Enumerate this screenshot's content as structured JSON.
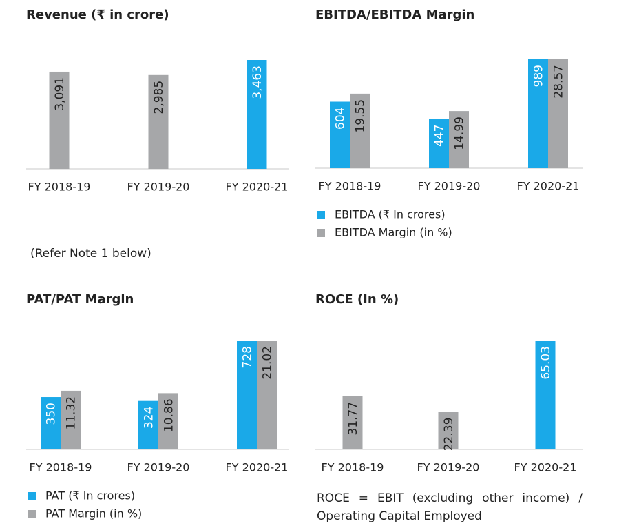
{
  "chart_data": [
    {
      "type": "bar",
      "title": "Revenue (₹ in crore)",
      "categories": [
        "FY 2018-19",
        "FY 2019-20",
        "FY 2020-21"
      ],
      "values": [
        3091,
        2985,
        3463
      ],
      "value_labels": [
        "3,091",
        "2,985",
        "3,463"
      ],
      "colors": [
        "#a6a7a9",
        "#a6a7a9",
        "#1aa9e8"
      ],
      "note": "(Refer Note 1 below)"
    },
    {
      "type": "bar",
      "title": "EBITDA/EBITDA Margin",
      "categories": [
        "FY 2018-19",
        "FY 2019-20",
        "FY 2020-21"
      ],
      "series": [
        {
          "name": "EBITDA (₹ In crores)",
          "color": "#1aa9e8",
          "values": [
            604,
            447,
            989
          ]
        },
        {
          "name": "EBITDA Margin (in %)",
          "color": "#a6a7a9",
          "values": [
            19.55,
            14.99,
            28.57
          ]
        }
      ]
    },
    {
      "type": "bar",
      "title": "PAT/PAT Margin",
      "categories": [
        "FY 2018-19",
        "FY 2019-20",
        "FY 2020-21"
      ],
      "series": [
        {
          "name": "PAT (₹ In crores)",
          "color": "#1aa9e8",
          "values": [
            350,
            324,
            728
          ]
        },
        {
          "name": "PAT Margin (in %)",
          "color": "#a6a7a9",
          "values": [
            11.32,
            10.86,
            21.02
          ]
        }
      ]
    },
    {
      "type": "bar",
      "title": "ROCE (In %)",
      "categories": [
        "FY 2018-19",
        "FY 2019-20",
        "FY 2020-21"
      ],
      "values": [
        31.77,
        22.39,
        65.03
      ],
      "colors": [
        "#a6a7a9",
        "#a6a7a9",
        "#1aa9e8"
      ],
      "note": "ROCE = EBIT (excluding other income) / Operating Capital Employed"
    }
  ]
}
